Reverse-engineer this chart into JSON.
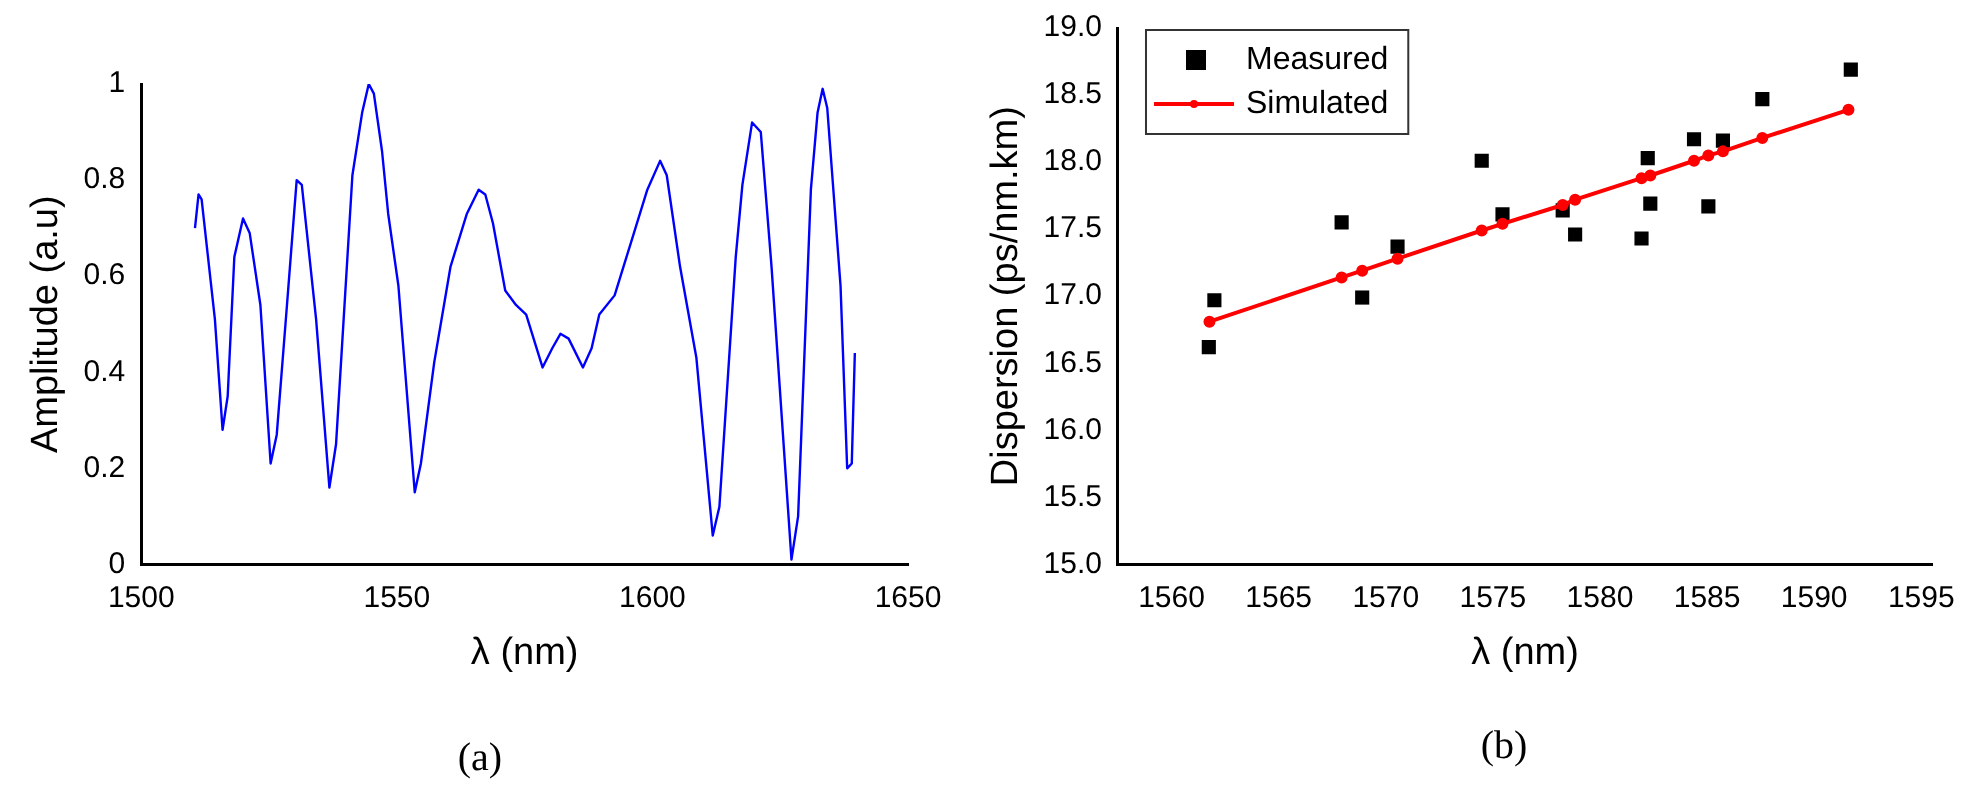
{
  "chart_data": [
    {
      "type": "line",
      "xlabel": "λ (nm)",
      "ylabel": "Amplitude (a.u)",
      "xlim": [
        1500,
        1650
      ],
      "ylim": [
        0,
        1
      ],
      "xticks": [
        1500,
        1550,
        1600,
        1650
      ],
      "yticks": [
        0,
        0.2,
        0.4,
        0.6,
        0.8,
        1
      ],
      "marker": "none",
      "annotations": [
        "(a)"
      ],
      "series": [
        {
          "color": "#0000ff",
          "x": [
            1510.5,
            1511.2,
            1511.8,
            1514.4,
            1515.9,
            1516.9,
            1518.2,
            1519.9,
            1521.2,
            1523.3,
            1525.3,
            1526.5,
            1528.5,
            1530.4,
            1531.4,
            1534.2,
            1536.8,
            1538.1,
            1541.3,
            1543.2,
            1544.5,
            1545.5,
            1547.1,
            1548.3,
            1550.3,
            1553.5,
            1554.7,
            1557.3,
            1560.5,
            1563.7,
            1566.0,
            1567.3,
            1568.8,
            1571.2,
            1573.3,
            1575.3,
            1578.5,
            1580.4,
            1582.0,
            1583.6,
            1586.4,
            1588.1,
            1589.6,
            1592.6,
            1595.8,
            1599.0,
            1601.5,
            1602.8,
            1605.4,
            1608.6,
            1611.8,
            1613.1,
            1616.3,
            1617.6,
            1619.5,
            1621.2,
            1623.3,
            1627.2,
            1628.5,
            1631.0,
            1632.3,
            1633.3,
            1634.2,
            1636.8,
            1638.1,
            1639.0,
            1639.6
          ],
          "values": [
            0.7,
            0.77,
            0.76,
            0.51,
            0.28,
            0.35,
            0.64,
            0.72,
            0.69,
            0.54,
            0.21,
            0.27,
            0.54,
            0.8,
            0.79,
            0.51,
            0.16,
            0.25,
            0.81,
            0.94,
            1.0,
            0.98,
            0.86,
            0.73,
            0.58,
            0.15,
            0.21,
            0.42,
            0.62,
            0.73,
            0.78,
            0.77,
            0.71,
            0.57,
            0.54,
            0.52,
            0.41,
            0.45,
            0.48,
            0.47,
            0.41,
            0.45,
            0.52,
            0.56,
            0.67,
            0.78,
            0.84,
            0.81,
            0.62,
            0.43,
            0.06,
            0.12,
            0.64,
            0.79,
            0.92,
            0.9,
            0.62,
            0.01,
            0.1,
            0.78,
            0.94,
            0.99,
            0.95,
            0.58,
            0.2,
            0.21,
            0.44
          ]
        }
      ]
    },
    {
      "type": "scatter",
      "xlabel": "λ (nm)",
      "ylabel": "Dispersion (ps/nm.km)",
      "xlim": [
        1557.5,
        1595.5
      ],
      "ylim": [
        15,
        19
      ],
      "xticks": [
        1560,
        1565,
        1570,
        1575,
        1580,
        1585,
        1590,
        1595
      ],
      "yticks": [
        {
          "value": 15,
          "label": "15.0"
        },
        {
          "value": 15.5,
          "label": "15.5"
        },
        {
          "value": 16,
          "label": "16.0"
        },
        {
          "value": 16.5,
          "label": "16.5"
        },
        {
          "value": 17,
          "label": "17.0"
        },
        {
          "value": 17.5,
          "label": "17.5"
        },
        {
          "value": 18,
          "label": "18.0"
        },
        {
          "value": 18.5,
          "label": "18.5"
        },
        {
          "value": 19,
          "label": "19.0"
        }
      ],
      "legend": "top left",
      "annotations": [
        "(b)"
      ],
      "series": [
        {
          "name": "Measured",
          "type": "scatter",
          "marker": "square",
          "color": "#000000",
          "x": [
            1561.74,
            1562.0,
            1567.94,
            1568.9,
            1570.55,
            1574.48,
            1575.45,
            1578.26,
            1578.84,
            1581.94,
            1582.23,
            1582.35,
            1584.39,
            1585.06,
            1585.74,
            1587.58,
            1591.71
          ],
          "values": [
            16.62,
            16.97,
            17.55,
            16.99,
            17.37,
            18.01,
            17.61,
            17.64,
            17.46,
            17.43,
            18.03,
            17.69,
            18.17,
            17.67,
            18.16,
            18.47,
            18.69
          ]
        },
        {
          "name": "Simulated",
          "type": "line",
          "marker": "circle",
          "color": "#ff0000",
          "x": [
            1561.77,
            1567.94,
            1568.9,
            1570.55,
            1574.48,
            1575.45,
            1578.26,
            1578.84,
            1581.94,
            1582.35,
            1584.39,
            1585.06,
            1585.74,
            1587.58,
            1591.6
          ],
          "values": [
            16.81,
            17.14,
            17.19,
            17.28,
            17.49,
            17.54,
            17.68,
            17.72,
            17.88,
            17.9,
            18.01,
            18.05,
            18.08,
            18.18,
            18.39
          ]
        }
      ]
    }
  ]
}
